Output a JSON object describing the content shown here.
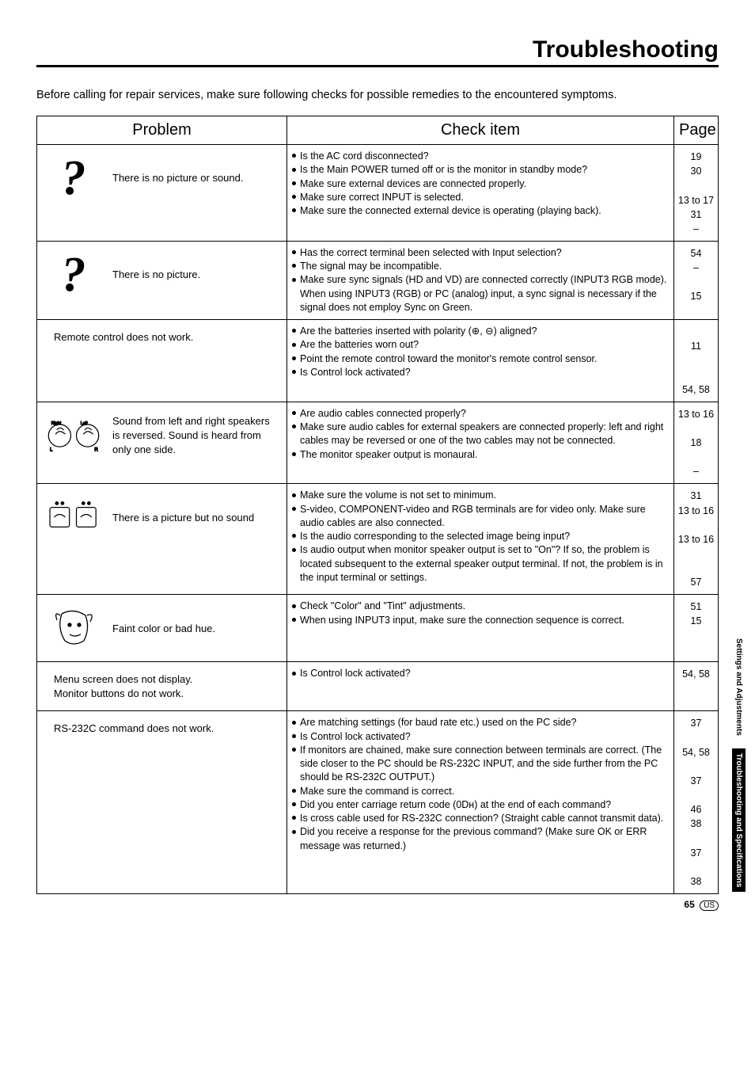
{
  "title": "Troubleshooting",
  "intro": "Before calling for repair services, make sure following checks for possible remedies to the encountered symptoms.",
  "headers": {
    "problem": "Problem",
    "check": "Check item",
    "page": "Page"
  },
  "rows": [
    {
      "icon": "qmark",
      "problem": "There is no picture or sound.",
      "checks": [
        "Is the AC cord disconnected?",
        "Is the Main POWER turned off or is the monitor in standby mode?",
        "Make sure external devices are connected properly.",
        "Make sure correct INPUT is selected.",
        "Make sure the connected external device is operating (playing back)."
      ],
      "pages": [
        "19",
        "30",
        "",
        "13 to 17",
        "31",
        "–"
      ]
    },
    {
      "icon": "qmark",
      "problem": "There is no picture.",
      "checks": [
        "Has the correct terminal been selected with Input selection?",
        "The signal may be incompatible.",
        "Make sure sync signals (HD and VD) are connected correctly (INPUT3 RGB mode).\nWhen using INPUT3 (RGB) or PC (analog) input, a sync signal is necessary if the signal does not employ Sync on Green."
      ],
      "pages": [
        "54",
        "–",
        "",
        "15"
      ]
    },
    {
      "icon": "none",
      "problem": "Remote control does not work.",
      "checks": [
        "Are the batteries inserted with polarity (⊕, ⊖) aligned?",
        "Are the batteries worn out?",
        "Point the remote control toward the monitor's remote control sensor.",
        "Is Control lock activated?"
      ],
      "pages": [
        "",
        "11",
        "",
        "",
        "54, 58"
      ]
    },
    {
      "icon": "ears",
      "problem": "Sound from left and right speakers is reversed. Sound is heard from only one side.",
      "checks": [
        "Are audio cables connected properly?",
        "Make sure audio cables for external speakers are connected properly: left and right cables may be reversed or one of the two cables may not be connected.",
        "The monitor speaker output is monaural."
      ],
      "pages": [
        "13 to 16",
        "",
        "18",
        "",
        "–"
      ]
    },
    {
      "icon": "nosound",
      "problem": "There is a picture but no sound",
      "checks": [
        "Make sure the volume is not set to minimum.",
        "S-video, COMPONENT-video and RGB terminals are for video only. Make sure audio cables are also connected.",
        "Is the audio corresponding to the selected image being input?",
        "Is audio output when monitor speaker output is set to \"On\"? If so, the problem is located subsequent to the external speaker output terminal. If not, the problem is in the input terminal or settings."
      ],
      "pages": [
        "31",
        "13 to 16",
        "",
        "13 to 16",
        "",
        "",
        "57"
      ]
    },
    {
      "icon": "face",
      "problem": "Faint color or bad hue.",
      "checks": [
        "Check \"Color\" and \"Tint\" adjustments.",
        "When using INPUT3 input, make sure the connection sequence is correct."
      ],
      "pages": [
        "51",
        "15"
      ]
    },
    {
      "icon": "none",
      "problem": "Menu screen does not display.\nMonitor buttons do not work.",
      "checks": [
        "Is Control lock activated?"
      ],
      "pages": [
        "54, 58"
      ]
    },
    {
      "icon": "none",
      "problem": "RS-232C command does not work.",
      "checks": [
        "Are matching settings (for baud rate etc.) used on the PC side?",
        "Is Control lock activated?",
        "If monitors are chained, make sure connection between terminals are correct. (The side closer to the PC should be RS-232C INPUT, and the side further from the PC should be RS-232C OUTPUT.)",
        "Make sure the command is correct.",
        "Did you enter carriage return code (0Dн) at the end of each command?",
        "Is cross cable used for RS-232C connection? (Straight cable cannot transmit data).",
        "Did you receive a response for the previous command? (Make sure OK or ERR message was returned.)"
      ],
      "pages": [
        "37",
        "",
        "54, 58",
        "",
        "37",
        "",
        "46",
        "38",
        "",
        "37",
        "",
        "38"
      ]
    }
  ],
  "tabs": {
    "a": "Settings and\nAdjustments",
    "b": "Troubleshooting\nand Specifications"
  },
  "footer": {
    "page": "65",
    "region": "US"
  }
}
